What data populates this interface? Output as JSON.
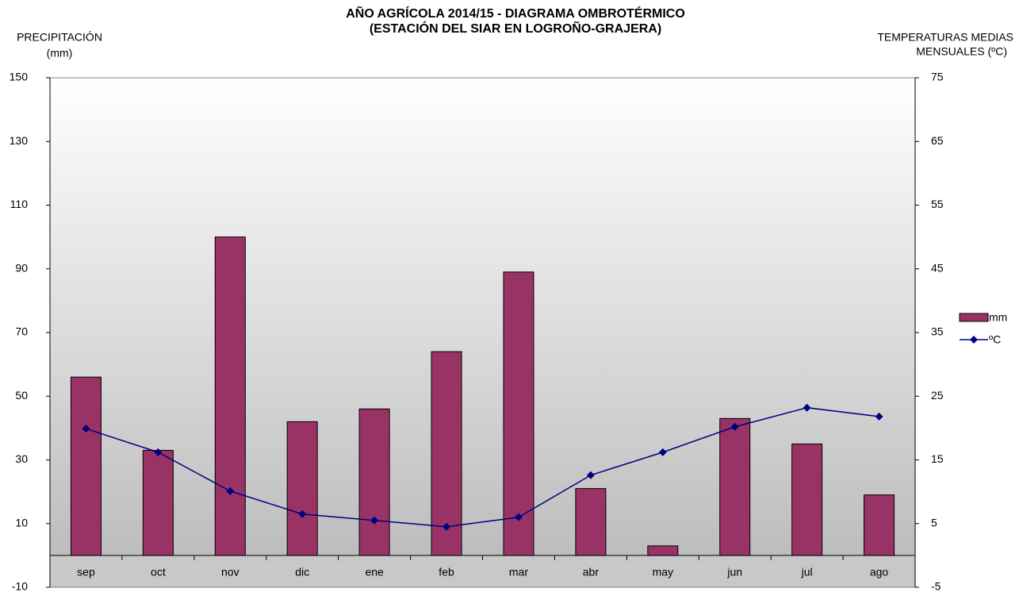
{
  "chart_data": {
    "type": "bar",
    "title": "AÑO AGRÍCOLA 2014/15 - DIAGRAMA OMBROTÉRMICO",
    "subtitle": "(ESTACIÓN DEL SIAR EN  LOGROÑO-GRAJERA)",
    "y_label": [
      "PRECIPITACIÓN",
      "(mm)"
    ],
    "y2_label": [
      "TEMPERATURAS  MEDIAS",
      "MENSUALES  (ºC)"
    ],
    "categories": [
      "sep",
      "oct",
      "nov",
      "dic",
      "ene",
      "feb",
      "mar",
      "abr",
      "may",
      "jun",
      "jul",
      "ago"
    ],
    "series": [
      {
        "name": "mm",
        "type": "bar",
        "color": "#993366",
        "values": [
          56,
          33,
          100,
          42,
          46,
          64,
          89,
          21,
          3,
          43,
          35,
          19
        ]
      },
      {
        "name": "ºC",
        "type": "line",
        "axis": "y2",
        "color": "#000080",
        "values": [
          19.9,
          16.2,
          10.1,
          6.5,
          5.5,
          4.5,
          6.0,
          12.6,
          16.2,
          20.2,
          23.2,
          21.8
        ]
      }
    ],
    "ylim": [
      -10,
      150
    ],
    "yticks": [
      -10,
      10,
      30,
      50,
      70,
      90,
      110,
      130,
      150
    ],
    "y2lim": [
      -5,
      75
    ],
    "y2ticks": [
      -5,
      5,
      15,
      25,
      35,
      45,
      55,
      65,
      75
    ],
    "legend": "right"
  }
}
